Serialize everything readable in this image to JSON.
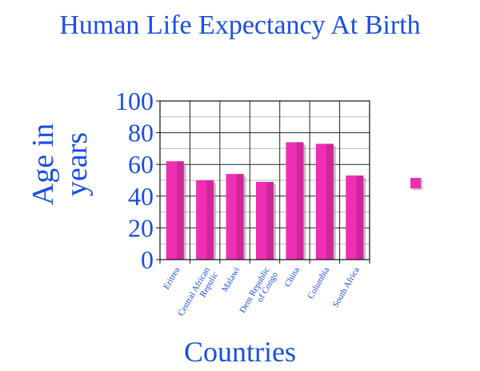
{
  "chart_data": {
    "type": "bar",
    "title": "Human Life Expectancy At Birth",
    "xlabel": "Countries",
    "ylabel": "Age in years",
    "ylim": [
      0,
      100
    ],
    "yticks": [
      "0",
      "20",
      "40",
      "60",
      "80",
      "100"
    ],
    "categories": [
      "Eritrea",
      "Central African Repulic",
      "Malawi",
      "Dem Republic of Congo",
      "China",
      "Columbia",
      "South Africa"
    ],
    "values": [
      62,
      50,
      54,
      49,
      74,
      73,
      53
    ],
    "bar_color": "#ee2fb4",
    "legend": "right",
    "grid": true
  }
}
